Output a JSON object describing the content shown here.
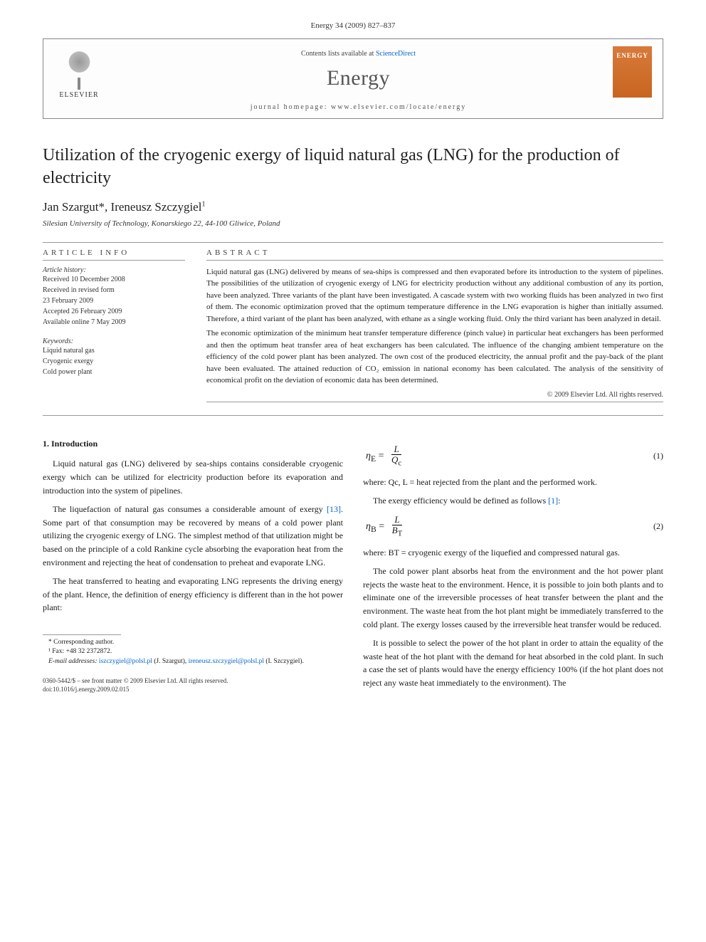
{
  "citation": "Energy 34 (2009) 827–837",
  "header": {
    "contents_prefix": "Contents lists available at ",
    "contents_link": "ScienceDirect",
    "journal": "Energy",
    "homepage_label": "journal homepage: www.elsevier.com/locate/energy",
    "publisher": "ELSEVIER",
    "cover_text": "ENERGY"
  },
  "title": "Utilization of the cryogenic exergy of liquid natural gas (LNG) for the production of electricity",
  "authors": "Jan Szargut*, Ireneusz Szczygiel",
  "author_sup": "1",
  "affiliation": "Silesian University of Technology, Konarskiego 22, 44-100 Gliwice, Poland",
  "info": {
    "heading": "ARTICLE INFO",
    "history_label": "Article history:",
    "history": [
      "Received 10 December 2008",
      "Received in revised form",
      "23 February 2009",
      "Accepted 26 February 2009",
      "Available online 7 May 2009"
    ],
    "keywords_label": "Keywords:",
    "keywords": [
      "Liquid natural gas",
      "Cryogenic exergy",
      "Cold power plant"
    ]
  },
  "abstract": {
    "heading": "ABSTRACT",
    "p1": "Liquid natural gas (LNG) delivered by means of sea-ships is compressed and then evaporated before its introduction to the system of pipelines. The possibilities of the utilization of cryogenic exergy of LNG for electricity production without any additional combustion of any its portion, have been analyzed. Three variants of the plant have been investigated. A cascade system with two working fluids has been analyzed in two first of them. The economic optimization proved that the optimum temperature difference in the LNG evaporation is higher than initially assumed. Therefore, a third variant of the plant has been analyzed, with ethane as a single working fluid. Only the third variant has been analyzed in detail.",
    "p2": "The economic optimization of the minimum heat transfer temperature difference (pinch value) in particular heat exchangers has been performed and then the optimum heat transfer area of heat exchangers has been calculated. The influence of the changing ambient temperature on the efficiency of the cold power plant has been analyzed. The own cost of the produced electricity, the annual profit and the pay-back of the plant have been evaluated. The attained reduction of CO₂ emission in national economy has been calculated. The analysis of the sensitivity of economical profit on the deviation of economic data has been determined.",
    "copyright": "© 2009 Elsevier Ltd. All rights reserved."
  },
  "body": {
    "section1_heading": "1. Introduction",
    "p1": "Liquid natural gas (LNG) delivered by sea-ships contains considerable cryogenic exergy which can be utilized for electricity production before its evaporation and introduction into the system of pipelines.",
    "p2a": "The liquefaction of natural gas consumes a considerable amount of exergy ",
    "ref13": "[13]",
    "p2b": ". Some part of that consumption may be recovered by means of a cold power plant utilizing the cryogenic exergy of LNG. The simplest method of that utilization might be based on the principle of a cold Rankine cycle absorbing the evaporation heat from the environment and rejecting the heat of condensation to preheat and evaporate LNG.",
    "p3": "The heat transferred to heating and evaporating LNG represents the driving energy of the plant. Hence, the definition of energy efficiency is different than in the hot power plant:",
    "eq1": {
      "lhs": "η",
      "sub1": "E",
      "eq": " = ",
      "num": "L",
      "den": "Q",
      "den_sub": "c",
      "num_label": "(1)"
    },
    "where1": "where: Qc, L = heat rejected from the plant and the performed work.",
    "p4a": "The exergy efficiency would be defined as follows ",
    "ref1": "[1]",
    "p4b": ":",
    "eq2": {
      "lhs": "η",
      "sub1": "B",
      "eq": " = ",
      "num": "L",
      "den": "B",
      "den_sub": "T",
      "num_label": "(2)"
    },
    "where2": "where: BT = cryogenic exergy of the liquefied and compressed natural gas.",
    "p5": "The cold power plant absorbs heat from the environment and the hot power plant rejects the waste heat to the environment. Hence, it is possible to join both plants and to eliminate one of the irreversible processes of heat transfer between the plant and the environment. The waste heat from the hot plant might be immediately transferred to the cold plant. The exergy losses caused by the irreversible heat transfer would be reduced.",
    "p6": "It is possible to select the power of the hot plant in order to attain the equality of the waste heat of the hot plant with the demand for heat absorbed in the cold plant. In such a case the set of plants would have the energy efficiency 100% (if the hot plant does not reject any waste heat immediately to the environment). The"
  },
  "footnotes": {
    "corr": "* Corresponding author.",
    "fax": "¹ Fax: +48 32 2372872.",
    "email_label": "E-mail addresses: ",
    "email1": "iszczygiel@polsl.pl",
    "email1_name": " (J. Szargut), ",
    "email2": "ireneusz.szczygiel@polsl.pl",
    "email2_name": "(I. Szczygiel)."
  },
  "footer": {
    "line1": "0360-5442/$ – see front matter © 2009 Elsevier Ltd. All rights reserved.",
    "line2": "doi:10.1016/j.energy.2009.02.015"
  }
}
